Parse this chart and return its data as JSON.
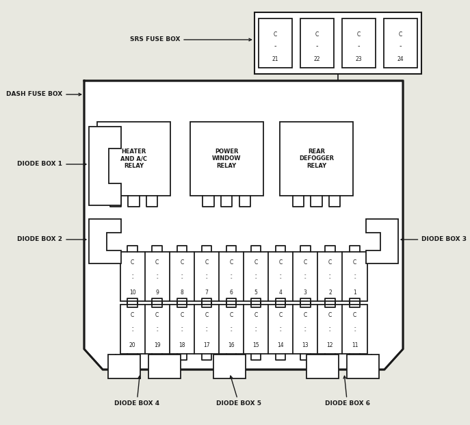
{
  "bg_color": "#e8e8e0",
  "line_color": "#1a1a1a",
  "fill_color": "#ffffff",
  "srs_fuse_numbers": [
    "21",
    "22",
    "23",
    "24"
  ],
  "top_fuse_labels": [
    "10",
    "9",
    "8",
    "7",
    "6",
    "5",
    "4",
    "3",
    "2",
    "1"
  ],
  "bot_fuse_labels": [
    "20",
    "19",
    "18",
    "17",
    "16",
    "15",
    "14",
    "13",
    "12",
    "11"
  ],
  "relay_labels": [
    "HEATER\nAND A/C\nRELAY",
    "POWER\nWINDOW\nRELAY",
    "REAR\nDEFOGGER\nRELAY"
  ],
  "label_fontsize": 6.5,
  "fuse_fontsize": 5.0,
  "relay_fontsize": 6.0
}
